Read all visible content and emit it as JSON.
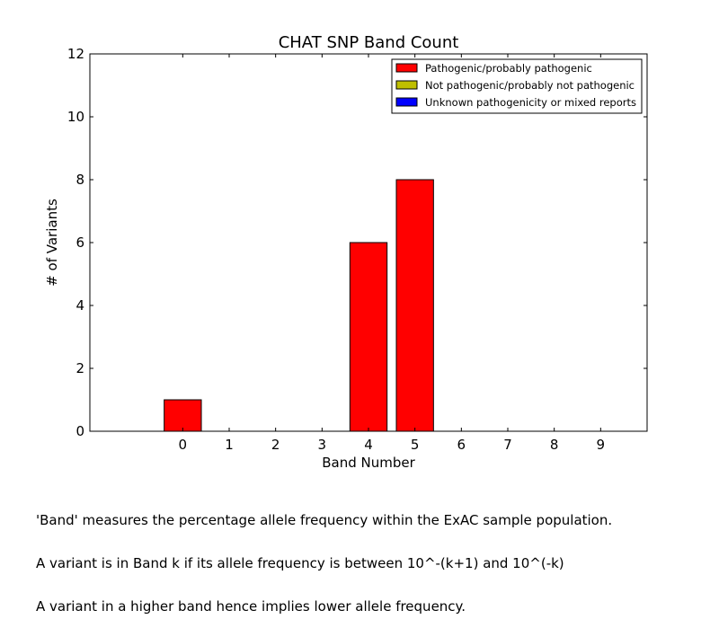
{
  "chart_data": {
    "type": "bar",
    "title": "CHAT SNP Band Count",
    "xlabel": "Band Number",
    "ylabel": "# of Variants",
    "categories": [
      "0",
      "1",
      "2",
      "3",
      "4",
      "5",
      "6",
      "7",
      "8",
      "9"
    ],
    "ylim": [
      0,
      12
    ],
    "yticks": [
      "0",
      "2",
      "4",
      "6",
      "8",
      "10",
      "12"
    ],
    "grid": false,
    "legend_position": "top-right",
    "series": [
      {
        "name": "Pathogenic/probably pathogenic",
        "color": "#ff0000",
        "values": [
          1,
          0,
          0,
          0,
          6,
          8,
          0,
          0,
          0,
          0
        ]
      },
      {
        "name": "Not pathogenic/probably not pathogenic",
        "color": "#bfbf00",
        "values": [
          0,
          0,
          0,
          0,
          0,
          0,
          0,
          0,
          0,
          0
        ]
      },
      {
        "name": "Unknown pathogenicity or mixed reports",
        "color": "#0000ff",
        "values": [
          0,
          0,
          0,
          0,
          0,
          0,
          0,
          0,
          0,
          0
        ]
      }
    ]
  },
  "caption": [
    "'Band' measures the percentage allele frequency within the ExAC sample population.",
    "A variant is in Band k if its allele frequency is between 10^-(k+1) and 10^(-k)",
    "A variant in a higher band hence implies lower allele frequency."
  ]
}
